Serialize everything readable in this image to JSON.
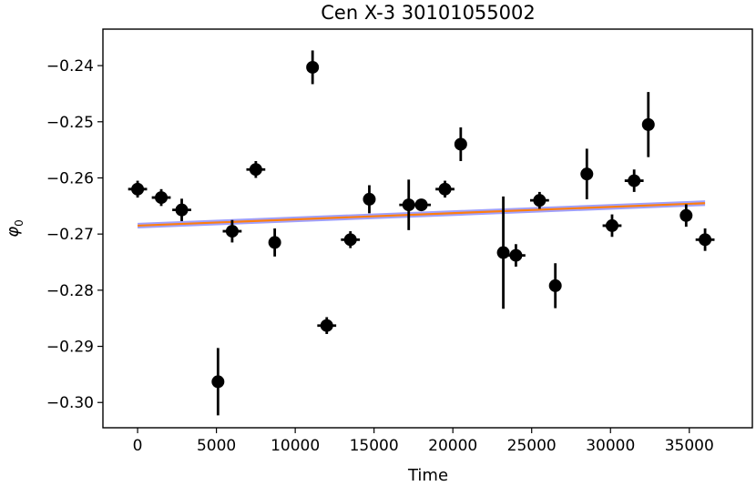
{
  "chart_data": {
    "type": "scatter",
    "title": "Cen X-3 30101055002",
    "xlabel": "Time",
    "ylabel_symbol": "φ",
    "ylabel_subscript": "0",
    "xlim": [
      -2200,
      39000
    ],
    "ylim": [
      -0.3045,
      -0.2335
    ],
    "x_ticks": [
      0,
      5000,
      10000,
      15000,
      20000,
      25000,
      30000,
      35000
    ],
    "x_tick_labels": [
      "0",
      "5000",
      "10000",
      "15000",
      "20000",
      "25000",
      "30000",
      "35000"
    ],
    "y_ticks": [
      -0.24,
      -0.25,
      -0.26,
      -0.27,
      -0.28,
      -0.29,
      -0.3
    ],
    "y_tick_labels": [
      "−0.24",
      "−0.25",
      "−0.26",
      "−0.27",
      "−0.28",
      "−0.29",
      "−0.30"
    ],
    "grid": false,
    "series": [
      {
        "kind": "errorbar",
        "color": "#000000",
        "points": [
          {
            "x": 0,
            "y": -0.262,
            "xerr": 600,
            "yerr": 0.0015
          },
          {
            "x": 1500,
            "y": -0.2635,
            "xerr": 600,
            "yerr": 0.0015
          },
          {
            "x": 2800,
            "y": -0.2657,
            "xerr": 600,
            "yerr": 0.002
          },
          {
            "x": 5100,
            "y": -0.2963,
            "xerr": 300,
            "yerr": 0.006
          },
          {
            "x": 6000,
            "y": -0.2695,
            "xerr": 600,
            "yerr": 0.002
          },
          {
            "x": 7500,
            "y": -0.2585,
            "xerr": 600,
            "yerr": 0.0015
          },
          {
            "x": 8700,
            "y": -0.2715,
            "xerr": 300,
            "yerr": 0.0025
          },
          {
            "x": 11100,
            "y": -0.2403,
            "xerr": 300,
            "yerr": 0.003
          },
          {
            "x": 12000,
            "y": -0.2863,
            "xerr": 600,
            "yerr": 0.0015
          },
          {
            "x": 13500,
            "y": -0.271,
            "xerr": 600,
            "yerr": 0.0015
          },
          {
            "x": 14700,
            "y": -0.2638,
            "xerr": 300,
            "yerr": 0.0025
          },
          {
            "x": 17200,
            "y": -0.2648,
            "xerr": 600,
            "yerr": 0.0045
          },
          {
            "x": 18000,
            "y": -0.2648,
            "xerr": 600,
            "yerr": 0.001
          },
          {
            "x": 19500,
            "y": -0.262,
            "xerr": 600,
            "yerr": 0.0015
          },
          {
            "x": 20500,
            "y": -0.254,
            "xerr": 300,
            "yerr": 0.003
          },
          {
            "x": 23200,
            "y": -0.2733,
            "xerr": 300,
            "yerr": 0.01
          },
          {
            "x": 24000,
            "y": -0.2738,
            "xerr": 600,
            "yerr": 0.002
          },
          {
            "x": 25500,
            "y": -0.264,
            "xerr": 600,
            "yerr": 0.0015
          },
          {
            "x": 26500,
            "y": -0.2792,
            "xerr": 300,
            "yerr": 0.004
          },
          {
            "x": 28500,
            "y": -0.2593,
            "xerr": 300,
            "yerr": 0.0045
          },
          {
            "x": 30100,
            "y": -0.2685,
            "xerr": 600,
            "yerr": 0.002
          },
          {
            "x": 31500,
            "y": -0.2605,
            "xerr": 600,
            "yerr": 0.002
          },
          {
            "x": 32400,
            "y": -0.2505,
            "xerr": 300,
            "yerr": 0.0058
          },
          {
            "x": 34800,
            "y": -0.2667,
            "xerr": 300,
            "yerr": 0.002
          },
          {
            "x": 36000,
            "y": -0.271,
            "xerr": 600,
            "yerr": 0.002
          }
        ]
      },
      {
        "kind": "fit_line",
        "color": "#ff7f0e",
        "band_color": "#8080ff",
        "x": [
          0,
          36000
        ],
        "y": [
          -0.2685,
          -0.2645
        ],
        "band_halfwidth": 0.0005
      }
    ]
  }
}
